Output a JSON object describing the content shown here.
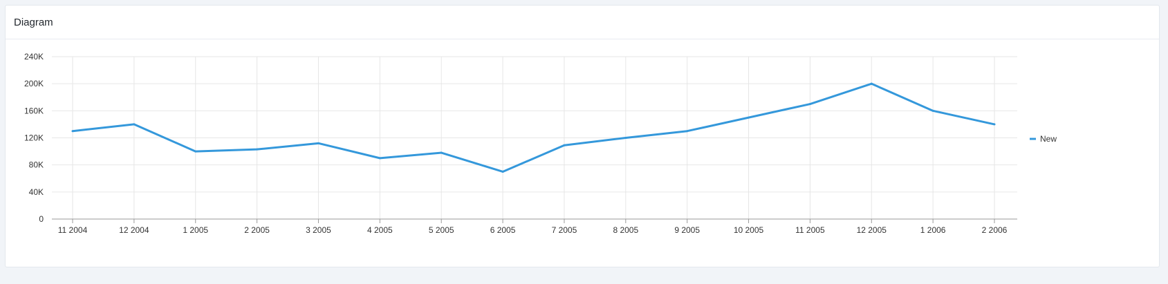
{
  "panel": {
    "title": "Diagram"
  },
  "colors": {
    "series": "#3498db",
    "grid": "#e6e6e6",
    "axis": "#999999"
  },
  "chart_data": {
    "type": "line",
    "title": "",
    "xlabel": "",
    "ylabel": "",
    "categories": [
      "11 2004",
      "12 2004",
      "1 2005",
      "2 2005",
      "3 2005",
      "4 2005",
      "5 2005",
      "6 2005",
      "7 2005",
      "8 2005",
      "9 2005",
      "10 2005",
      "11 2005",
      "12 2005",
      "1 2006",
      "2 2006"
    ],
    "series": [
      {
        "name": "New",
        "values": [
          130000,
          140000,
          100000,
          103000,
          112000,
          90000,
          98000,
          70000,
          109000,
          120000,
          130000,
          150000,
          170000,
          200000,
          160000,
          140000
        ]
      }
    ],
    "ylim": [
      0,
      240000
    ],
    "yticks": [
      0,
      40000,
      80000,
      120000,
      160000,
      200000,
      240000
    ],
    "ytick_labels": [
      "0",
      "40K",
      "80K",
      "120K",
      "160K",
      "200K",
      "240K"
    ],
    "grid": true,
    "legend_position": "right"
  }
}
